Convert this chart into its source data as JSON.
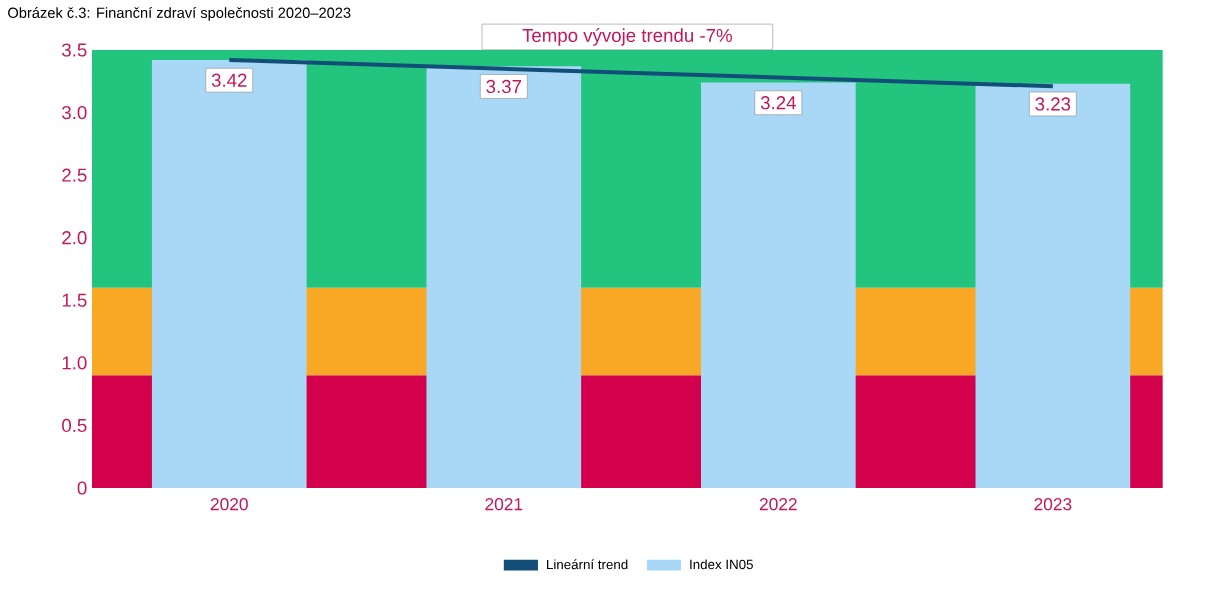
{
  "chart_data": {
    "type": "bar",
    "title": "Obrázek č.3: Finanční zdraví společnosti 2020–2023",
    "categories": [
      "2020",
      "2021",
      "2022",
      "2023"
    ],
    "series": [
      {
        "name": "Lineární trend",
        "type": "line",
        "color": "#134e78",
        "values": [
          3.42,
          3.35,
          3.28,
          3.21
        ]
      },
      {
        "name": "Index IN05",
        "color": "#a9d8f7",
        "values": [
          3.42,
          3.37,
          3.24,
          3.23
        ],
        "value_labels": [
          "3.42",
          "3.37",
          "3.24",
          "3.23"
        ]
      }
    ],
    "ylim": [
      0,
      3.5
    ],
    "yticks": [
      "0",
      0.5,
      {
        "value": 1,
        "label": "1.0"
      },
      1.5,
      {
        "value": 2,
        "label": "2.0"
      },
      2.5,
      {
        "value": 3,
        "label": "3.0"
      },
      3.5
    ],
    "bands": [
      {
        "axis": "y",
        "from": 0,
        "to": 0.9,
        "color": "#d3004b"
      },
      {
        "axis": "y",
        "from": 0.9,
        "to": 1.6,
        "color": "#f9a826"
      },
      {
        "axis": "y",
        "from": 1.6,
        "to": 3.5,
        "color": "#22c47e"
      }
    ],
    "annotations": [
      "Tempo vývoje trendu -7%"
    ],
    "grid": false,
    "legend": "bottom",
    "marker": "none",
    "line_style": "solid"
  }
}
